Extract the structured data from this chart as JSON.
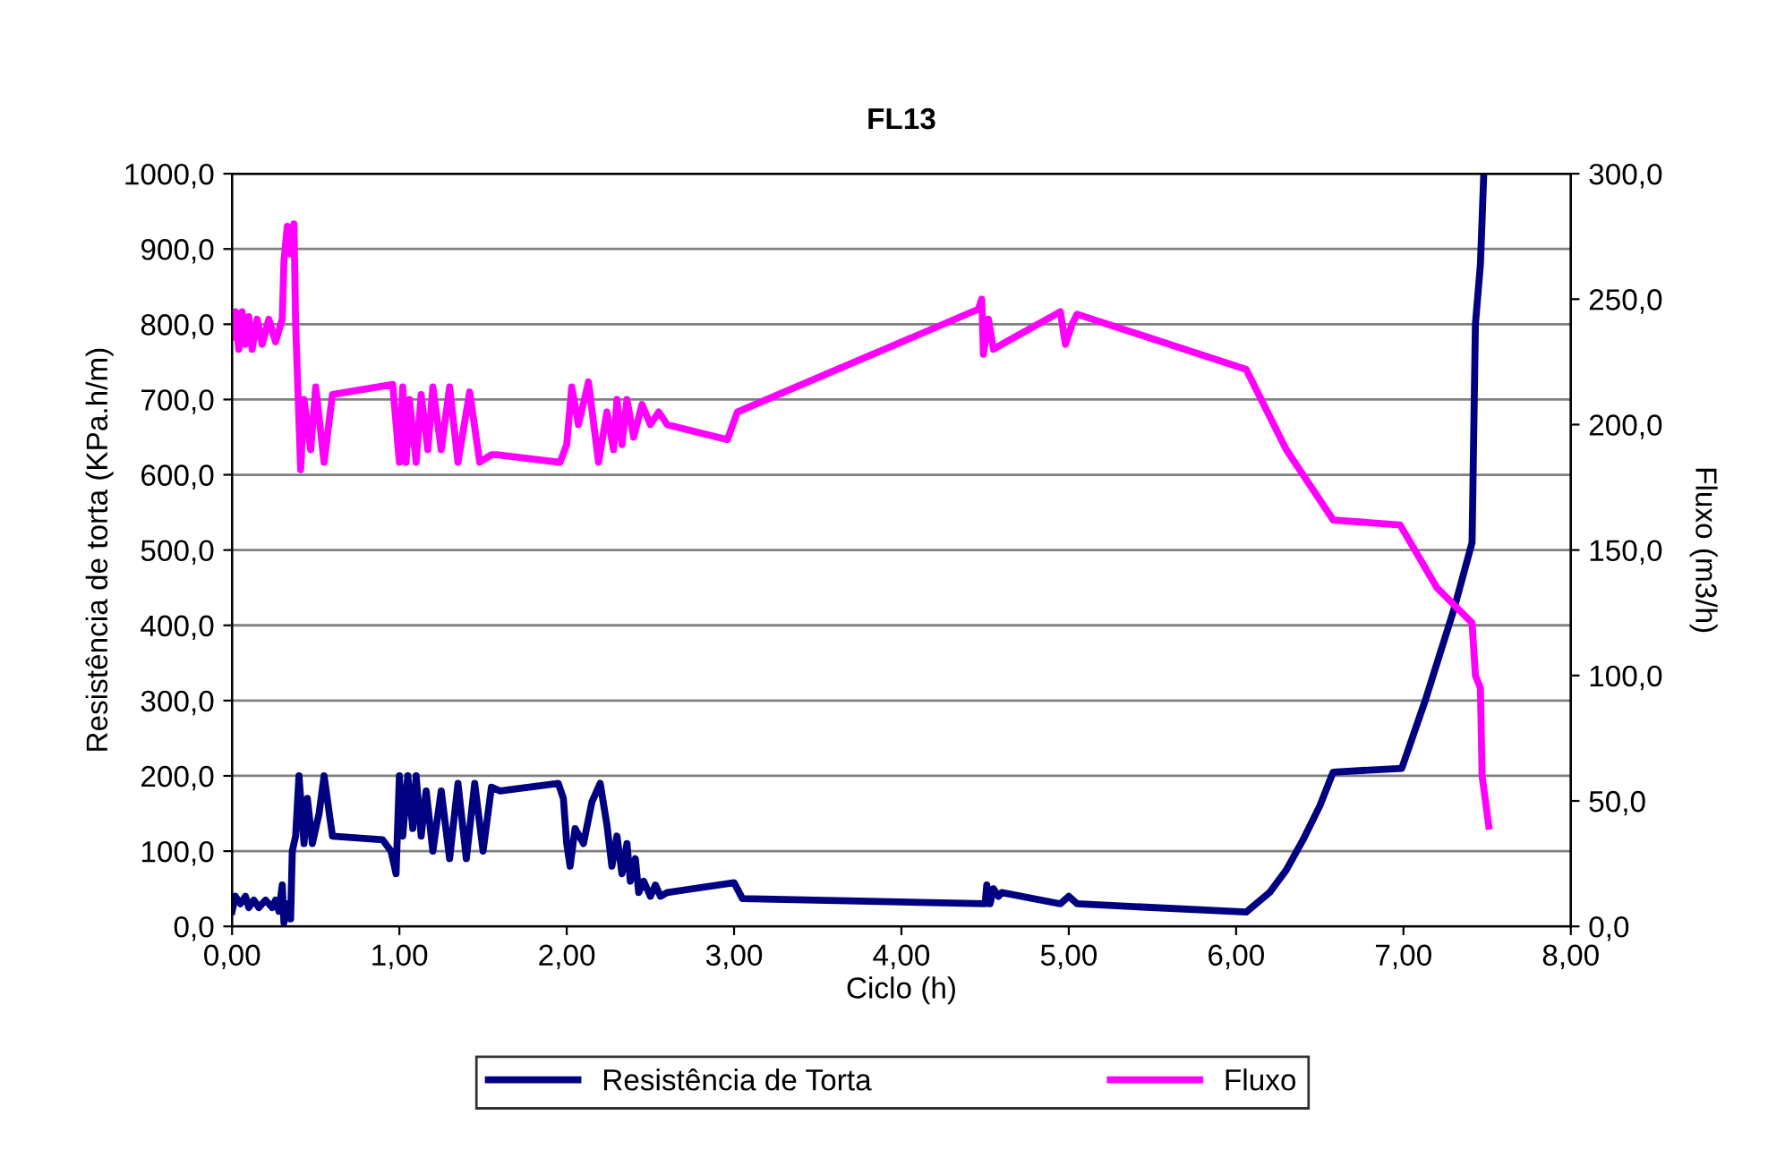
{
  "chart_data": {
    "type": "line",
    "title": "FL13",
    "xlabel": "Ciclo (h)",
    "ylabel": "Resistência de torta (KPa.h/m)",
    "y2label": "Fluxo (m3/h)",
    "xlim": [
      0,
      8
    ],
    "xticks": [
      {
        "value": 0,
        "label": "0,00"
      },
      {
        "value": 1,
        "label": "1,00"
      },
      {
        "value": 2,
        "label": "2,00"
      },
      {
        "value": 3,
        "label": "3,00"
      },
      {
        "value": 4,
        "label": "4,00"
      },
      {
        "value": 5,
        "label": "5,00"
      },
      {
        "value": 6,
        "label": "6,00"
      },
      {
        "value": 7,
        "label": "7,00"
      },
      {
        "value": 8,
        "label": "8,00"
      }
    ],
    "ylim": [
      0,
      1000
    ],
    "yticks": [
      {
        "value": 0,
        "label": "0,0"
      },
      {
        "value": 100,
        "label": "100,0"
      },
      {
        "value": 200,
        "label": "200,0"
      },
      {
        "value": 300,
        "label": "300,0"
      },
      {
        "value": 400,
        "label": "400,0"
      },
      {
        "value": 500,
        "label": "500,0"
      },
      {
        "value": 600,
        "label": "600,0"
      },
      {
        "value": 700,
        "label": "700,0"
      },
      {
        "value": 800,
        "label": "800,0"
      },
      {
        "value": 900,
        "label": "900,0"
      },
      {
        "value": 1000,
        "label": "1000,0"
      }
    ],
    "y2lim": [
      0,
      300
    ],
    "y2ticks": [
      {
        "value": 0,
        "label": "0,0"
      },
      {
        "value": 50,
        "label": "50,0"
      },
      {
        "value": 100,
        "label": "100,0"
      },
      {
        "value": 150,
        "label": "150,0"
      },
      {
        "value": 200,
        "label": "200,0"
      },
      {
        "value": 250,
        "label": "250,0"
      },
      {
        "value": 300,
        "label": "300,0"
      }
    ],
    "grid": "y",
    "legend": "bottom",
    "marker": "none",
    "line_style": "solid",
    "series": [
      {
        "name": "Resistência de Torta",
        "color": "#000080",
        "x": [
          0.0,
          0.02,
          0.05,
          0.08,
          0.1,
          0.13,
          0.16,
          0.2,
          0.24,
          0.26,
          0.28,
          0.3,
          0.31,
          0.33,
          0.35,
          0.36,
          0.38,
          0.4,
          0.43,
          0.45,
          0.48,
          0.52,
          0.55,
          0.6,
          0.9,
          0.95,
          0.98,
          1.0,
          1.02,
          1.05,
          1.08,
          1.1,
          1.13,
          1.16,
          1.2,
          1.25,
          1.3,
          1.35,
          1.4,
          1.45,
          1.5,
          1.55,
          1.6,
          1.95,
          1.98,
          2.0,
          2.02,
          2.05,
          2.1,
          2.15,
          2.2,
          2.24,
          2.27,
          2.3,
          2.33,
          2.36,
          2.38,
          2.41,
          2.43,
          2.46,
          2.5,
          2.53,
          2.56,
          2.6,
          3.0,
          3.05,
          4.5,
          4.51,
          4.53,
          4.55,
          4.58,
          4.6,
          4.95,
          5.0,
          5.05,
          6.06,
          6.2,
          6.3,
          6.4,
          6.5,
          6.58,
          6.99,
          7.13,
          7.3,
          7.41,
          7.43,
          7.46,
          7.48
        ],
        "values": [
          20,
          40,
          30,
          40,
          25,
          35,
          25,
          35,
          25,
          35,
          20,
          55,
          5,
          30,
          10,
          100,
          120,
          200,
          110,
          170,
          110,
          150,
          200,
          120,
          115,
          100,
          70,
          200,
          120,
          200,
          130,
          200,
          120,
          180,
          100,
          180,
          90,
          190,
          90,
          190,
          100,
          185,
          180,
          190,
          170,
          110,
          80,
          130,
          110,
          165,
          190,
          135,
          80,
          120,
          70,
          110,
          60,
          90,
          45,
          60,
          40,
          55,
          40,
          45,
          58,
          37,
          30,
          55,
          30,
          50,
          40,
          45,
          30,
          40,
          30,
          19,
          45,
          75,
          115,
          160,
          205,
          210,
          300,
          420,
          510,
          800,
          880,
          1000
        ]
      },
      {
        "name": "Fluxo",
        "color": "#ff00ff",
        "axis": "y2",
        "x": [
          0.0,
          0.02,
          0.04,
          0.06,
          0.08,
          0.1,
          0.12,
          0.15,
          0.18,
          0.22,
          0.26,
          0.3,
          0.31,
          0.33,
          0.35,
          0.37,
          0.38,
          0.41,
          0.43,
          0.47,
          0.5,
          0.55,
          0.6,
          0.96,
          1.0,
          1.02,
          1.04,
          1.06,
          1.1,
          1.13,
          1.17,
          1.2,
          1.25,
          1.3,
          1.35,
          1.42,
          1.48,
          1.55,
          1.58,
          1.96,
          2.0,
          2.03,
          2.07,
          2.13,
          2.19,
          2.24,
          2.28,
          2.3,
          2.33,
          2.36,
          2.4,
          2.45,
          2.5,
          2.55,
          2.6,
          2.96,
          3.02,
          4.46,
          4.48,
          4.49,
          4.52,
          4.55,
          4.6,
          4.95,
          4.98,
          5.02,
          5.05,
          6.06,
          6.3,
          6.58,
          6.98,
          7.2,
          7.41,
          7.43,
          7.46,
          7.47,
          7.51
        ],
        "values": [
          235,
          245,
          230,
          245,
          232,
          243,
          230,
          242,
          232,
          242,
          233,
          242,
          265,
          279,
          268,
          280,
          240,
          182,
          210,
          190,
          215,
          185,
          212,
          216,
          185,
          215,
          185,
          210,
          185,
          212,
          190,
          215,
          190,
          215,
          185,
          213,
          185,
          188,
          188,
          185,
          192,
          215,
          200,
          217,
          185,
          205,
          190,
          210,
          192,
          210,
          195,
          208,
          200,
          205,
          200,
          194,
          205,
          246,
          250,
          228,
          242,
          230,
          232,
          245,
          232,
          240,
          244,
          222,
          190,
          162,
          160,
          135,
          121,
          100,
          95,
          60,
          40
        ]
      }
    ]
  }
}
